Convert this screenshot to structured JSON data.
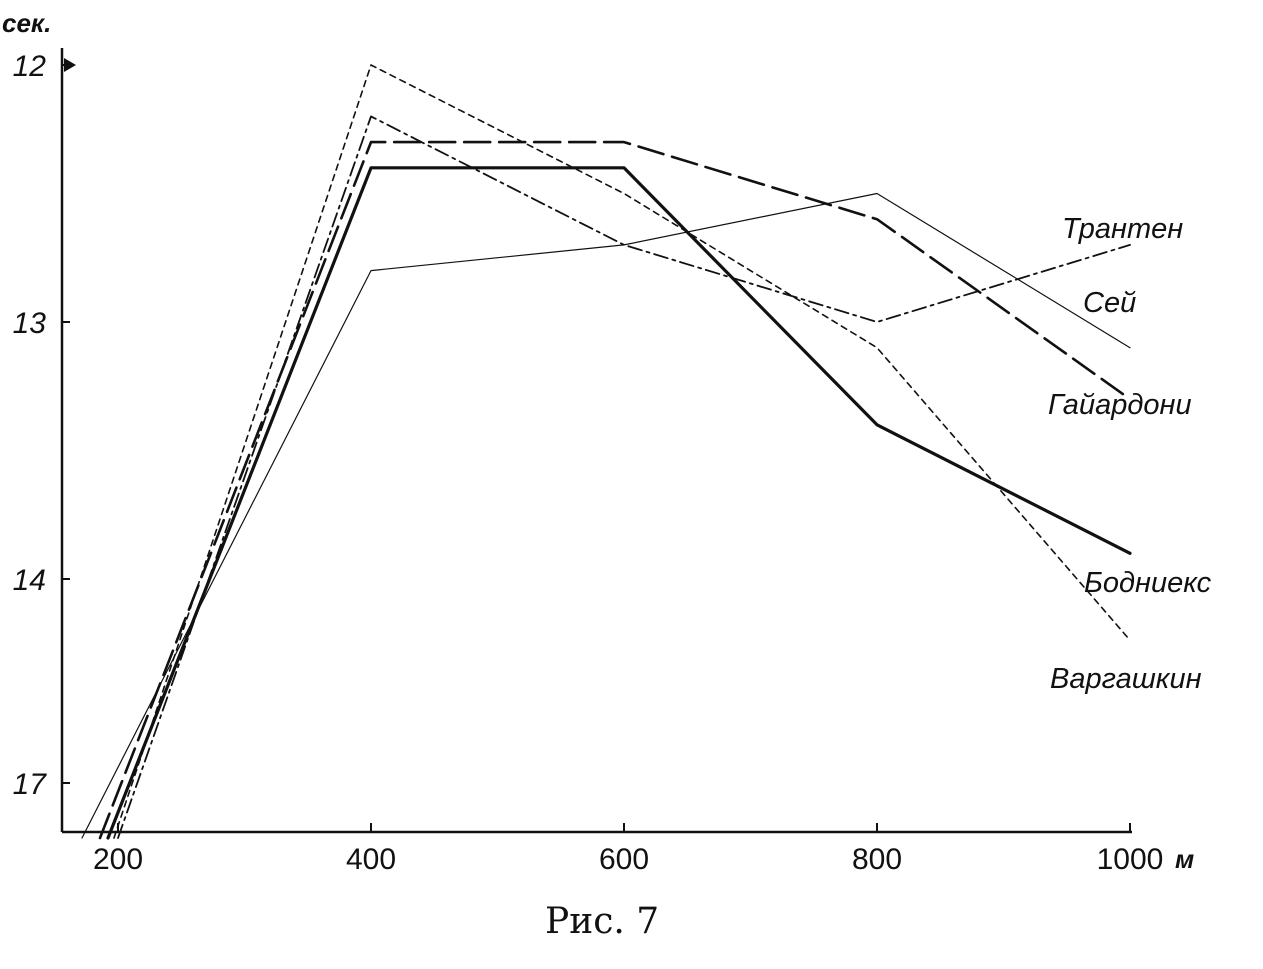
{
  "chart_data": {
    "type": "line",
    "title": "",
    "caption": "Рис. 7",
    "xlabel": "м",
    "ylabel": "сек.",
    "x_ticks": [
      "200",
      "400",
      "600",
      "800",
      "1000"
    ],
    "y_ticks": [
      "12",
      "13",
      "14",
      "17"
    ],
    "grid": false,
    "legend": "labels at line ends",
    "series": [
      {
        "name": "Трантен",
        "style": "dashdot",
        "x": [
          200,
          400,
          600,
          800,
          1000
        ],
        "y": [
          17.2,
          12.2,
          12.7,
          13.0,
          12.7
        ]
      },
      {
        "name": "Сей",
        "style": "thin",
        "x": [
          200,
          400,
          600,
          800,
          1000
        ],
        "y": [
          17.2,
          12.8,
          12.7,
          12.5,
          13.1
        ]
      },
      {
        "name": "Гайардони",
        "style": "longdash",
        "x": [
          200,
          400,
          600,
          800,
          1000
        ],
        "y": [
          17.2,
          12.3,
          12.3,
          12.6,
          13.3
        ]
      },
      {
        "name": "Бодниекс",
        "style": "thick",
        "x": [
          200,
          400,
          600,
          800,
          1000
        ],
        "y": [
          17.2,
          12.4,
          12.4,
          13.4,
          13.9
        ]
      },
      {
        "name": "Варгашкин",
        "style": "shortdash",
        "x": [
          200,
          400,
          600,
          800,
          1000
        ],
        "y": [
          17.2,
          12.0,
          12.5,
          13.1,
          14.3
        ]
      }
    ]
  }
}
